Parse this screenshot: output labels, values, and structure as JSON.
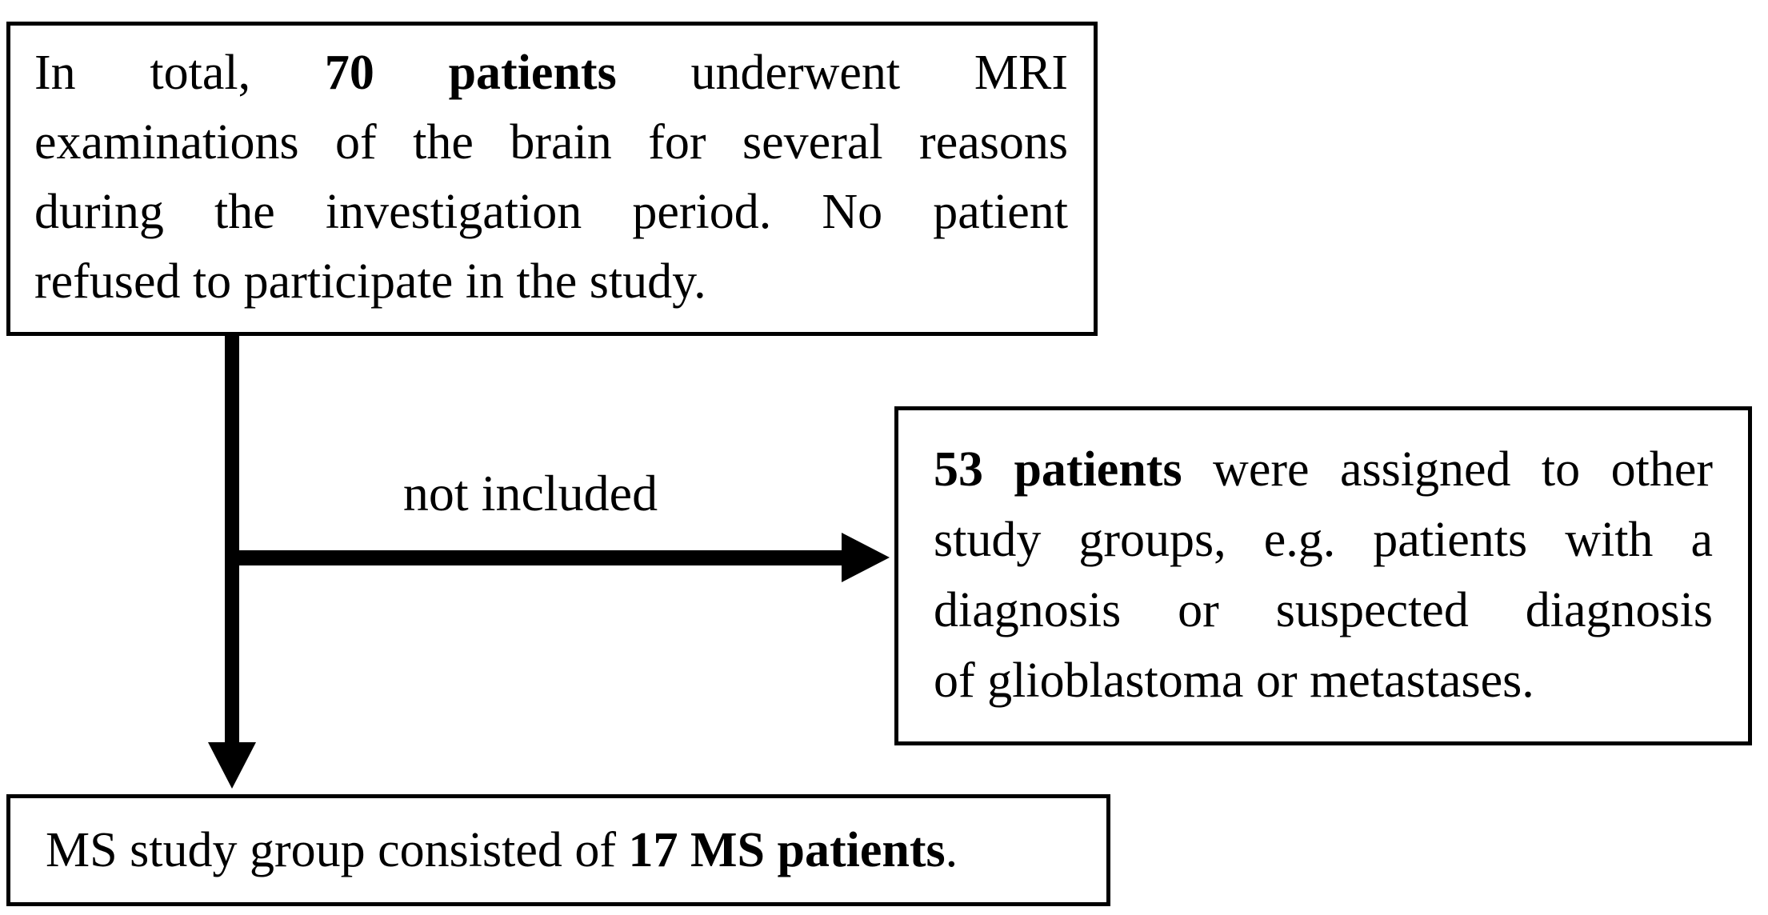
{
  "figure": {
    "type": "flowchart",
    "background": "#ffffff",
    "ink": "#000000",
    "counts": {
      "total_patients": "70",
      "excluded_patients": "53",
      "ms_patients": "17"
    }
  },
  "labels": {
    "not_included": "not included"
  },
  "boxes": {
    "total": {
      "lines": [
        {
          "justify": true,
          "segments": [
            {
              "text": "In total, "
            },
            {
              "text": "70 patients",
              "bold": true
            },
            {
              "text": " underwent MRI"
            }
          ]
        },
        {
          "justify": true,
          "segments": [
            {
              "text": "examinations of the brain for several reasons"
            }
          ]
        },
        {
          "justify": true,
          "segments": [
            {
              "text": "during the investigation period. No patient"
            }
          ]
        },
        {
          "justify": false,
          "segments": [
            {
              "text": "refused to participate in the study."
            }
          ]
        }
      ]
    },
    "excluded": {
      "lines": [
        {
          "justify": true,
          "segments": [
            {
              "text": "53 patients",
              "bold": true
            },
            {
              "text": " were assigned to other"
            }
          ]
        },
        {
          "justify": true,
          "segments": [
            {
              "text": "study groups, e.g. patients with a"
            }
          ]
        },
        {
          "justify": true,
          "segments": [
            {
              "text": "diagnosis or suspected diagnosis"
            }
          ]
        },
        {
          "justify": false,
          "segments": [
            {
              "text": "of glioblastoma or metastases."
            }
          ]
        }
      ]
    },
    "ms": {
      "lines": [
        {
          "justify": false,
          "segments": [
            {
              "text": "MS study group consisted of "
            },
            {
              "text": "17 MS patients",
              "bold": true
            },
            {
              "text": "."
            }
          ]
        }
      ]
    }
  }
}
